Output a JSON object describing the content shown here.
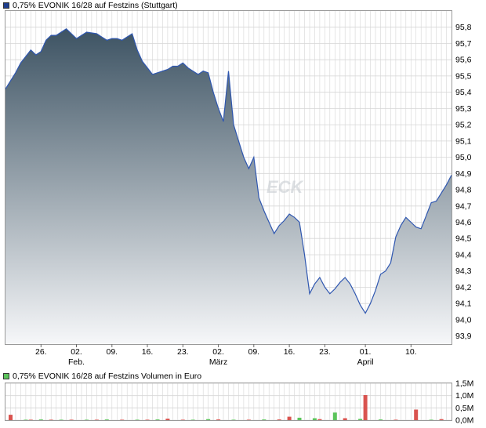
{
  "price_legend": {
    "label": "0,75% EVONIK 16/28 auf Festzins (Stuttgart)",
    "color": "#1f3f8f"
  },
  "volume_legend": {
    "label": "0,75% EVONIK 16/28 auf Festzins Volumen in Euro",
    "color": "#5cc45c"
  },
  "watermark": "ECK",
  "colors": {
    "line": "#2f57b0",
    "area_top": "#3d5363",
    "area_bottom": "#f6f7f9",
    "grid": "#d6d6d6",
    "vol_up": "#5cc45c",
    "vol_down": "#d9534f"
  },
  "chart_data": [
    {
      "type": "area",
      "title": "0,75% EVONIK 16/28 auf Festzins (Stuttgart)",
      "x_tick_labels": [
        "26.",
        "02.",
        "09.",
        "16.",
        "23.",
        "02.",
        "09.",
        "16.",
        "23.",
        "01.",
        "10."
      ],
      "x_tick_days": [
        3,
        10,
        17,
        24,
        31,
        38,
        45,
        52,
        59,
        67,
        76
      ],
      "x_month_labels": [
        {
          "label": "Feb.",
          "day": 10
        },
        {
          "label": "März",
          "day": 38
        },
        {
          "label": "April",
          "day": 67
        }
      ],
      "x_range_days": [
        -4,
        84
      ],
      "y_range": [
        93.85,
        95.9
      ],
      "y_tick_labels": [
        "93,9",
        "94,0",
        "94,1",
        "94,2",
        "94,3",
        "94,4",
        "94,5",
        "94,6",
        "94,7",
        "94,8",
        "94,9",
        "95,0",
        "95,1",
        "95,2",
        "95,3",
        "95,4",
        "95,5",
        "95,6",
        "95,7",
        "95,8"
      ],
      "y_tick_values": [
        93.9,
        94.0,
        94.1,
        94.2,
        94.3,
        94.4,
        94.5,
        94.6,
        94.7,
        94.8,
        94.9,
        95.0,
        95.1,
        95.2,
        95.3,
        95.4,
        95.5,
        95.6,
        95.7,
        95.8
      ],
      "grid": true,
      "series": [
        {
          "x": [
            -4,
            -3,
            -2,
            -1,
            0,
            1,
            2,
            3,
            4,
            5,
            6,
            8,
            9,
            10,
            11,
            12,
            14,
            15,
            16,
            17,
            18,
            19,
            21,
            22,
            23,
            25,
            26,
            27,
            28,
            29,
            30,
            31,
            32,
            33,
            34,
            35,
            36,
            37,
            38,
            39,
            40,
            41,
            42,
            43,
            44,
            45,
            46,
            47,
            48,
            49,
            50,
            51,
            52,
            53,
            54,
            55,
            56,
            57,
            58,
            59,
            60,
            61,
            62,
            63,
            64,
            65,
            66,
            67,
            68,
            69,
            70,
            71,
            72,
            73,
            74,
            75,
            76,
            77,
            78,
            79,
            80,
            81,
            82,
            83,
            84
          ],
          "y": [
            95.42,
            95.47,
            95.52,
            95.58,
            95.62,
            95.66,
            95.63,
            95.65,
            95.72,
            95.75,
            95.75,
            95.79,
            95.76,
            95.73,
            95.75,
            95.77,
            95.76,
            95.74,
            95.72,
            95.73,
            95.73,
            95.72,
            95.76,
            95.66,
            95.59,
            95.51,
            95.52,
            95.53,
            95.54,
            95.56,
            95.56,
            95.58,
            95.55,
            95.53,
            95.51,
            95.53,
            95.52,
            95.4,
            95.3,
            95.22,
            95.53,
            95.2,
            95.1,
            95.0,
            94.93,
            95.0,
            94.75,
            94.67,
            94.6,
            94.53,
            94.58,
            94.61,
            94.65,
            94.63,
            94.6,
            94.4,
            94.16,
            94.22,
            94.26,
            94.2,
            94.16,
            94.19,
            94.23,
            94.26,
            94.22,
            94.16,
            94.09,
            94.04,
            94.1,
            94.18,
            94.28,
            94.3,
            94.35,
            94.51,
            94.58,
            94.63,
            94.6,
            94.57,
            94.56,
            94.64,
            94.72,
            94.73,
            94.78,
            94.83,
            94.89
          ]
        }
      ]
    },
    {
      "type": "bar",
      "title": "0,75% EVONIK 16/28 auf Festzins Volumen in Euro",
      "y_tick_labels": [
        "0,0M",
        "0,5M",
        "1,0M",
        "1,5M"
      ],
      "y_tick_values": [
        0,
        0.5,
        1.0,
        1.5
      ],
      "y_range": [
        0,
        1.5
      ],
      "grid": true,
      "x_range_days": [
        -4,
        84
      ],
      "series": [
        {
          "name": "up",
          "x": [
            0,
            3,
            7,
            12,
            16,
            22,
            26,
            33,
            36,
            41,
            47,
            54,
            57,
            61,
            66,
            70,
            80
          ],
          "values": [
            0.02,
            0.03,
            0.02,
            0.02,
            0.03,
            0.02,
            0.03,
            0.02,
            0.04,
            0.02,
            0.03,
            0.1,
            0.08,
            0.31,
            0.05,
            0.03,
            0.02
          ]
        },
        {
          "name": "down",
          "x": [
            -3,
            1,
            5,
            9,
            14,
            19,
            24,
            28,
            31,
            38,
            44,
            50,
            52,
            58,
            63,
            67,
            73,
            77,
            82
          ],
          "values": [
            0.22,
            0.02,
            0.02,
            0.02,
            0.02,
            0.02,
            0.02,
            0.06,
            0.02,
            0.03,
            0.02,
            0.03,
            0.14,
            0.04,
            0.08,
            1.02,
            0.02,
            0.43,
            0.04
          ]
        }
      ]
    }
  ]
}
